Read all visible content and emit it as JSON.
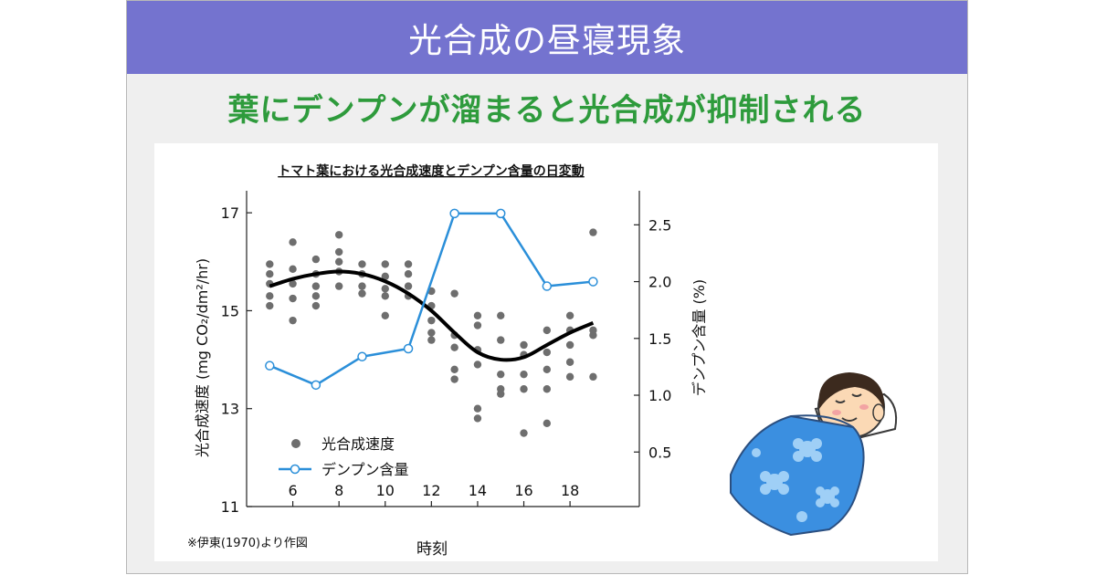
{
  "header": {
    "title": "光合成の昼寝現象"
  },
  "subtitle": "葉にデンプンが溜まると光合成が抑制される",
  "source_note": "※伊東(1970)より作図",
  "colors": {
    "banner": "#7473cf",
    "subtitle": "#2e9b3c",
    "starch_line": "#2b8fd9",
    "points": "#6e6e6e",
    "curve": "#000000"
  },
  "illustration": {
    "name": "sleeping-person-illustration"
  },
  "chart_data": {
    "type": "scatter",
    "title": "トマト葉における光合成速度とデンプン含量の日変動",
    "xlabel": "時刻",
    "ylabel_left": "光合成速度 (mg CO₂/dm²/hr)",
    "ylabel_right": "デンプン含量 (%)",
    "x_ticks": [
      6,
      8,
      10,
      12,
      14,
      16,
      18
    ],
    "xlim": [
      4,
      21
    ],
    "y_left_ticks": [
      11,
      13,
      15,
      17
    ],
    "y_left_lim": [
      11,
      17.45
    ],
    "y_right_ticks": [
      "0.5",
      "1.0",
      "1.5",
      "2.0",
      "2.5"
    ],
    "y_right_lim": [
      0.02,
      2.8
    ],
    "legend": {
      "placement": "bottom-left",
      "entries": [
        "光合成速度",
        "デンプン含量"
      ]
    },
    "series": [
      {
        "name": "光合成速度",
        "kind": "scatter",
        "axis": "left",
        "points": [
          [
            5,
            15.95
          ],
          [
            5,
            15.75
          ],
          [
            5,
            15.55
          ],
          [
            5,
            15.3
          ],
          [
            5,
            15.1
          ],
          [
            6,
            16.4
          ],
          [
            6,
            15.85
          ],
          [
            6,
            15.55
          ],
          [
            6,
            15.25
          ],
          [
            6,
            14.8
          ],
          [
            7,
            16.05
          ],
          [
            7,
            15.75
          ],
          [
            7,
            15.5
          ],
          [
            7,
            15.3
          ],
          [
            7,
            15.1
          ],
          [
            8,
            16.55
          ],
          [
            8,
            16.2
          ],
          [
            8,
            16.0
          ],
          [
            8,
            15.8
          ],
          [
            8,
            15.5
          ],
          [
            9,
            15.95
          ],
          [
            9,
            15.75
          ],
          [
            9,
            15.5
          ],
          [
            9,
            15.35
          ],
          [
            10,
            15.95
          ],
          [
            10,
            15.7
          ],
          [
            10,
            15.45
          ],
          [
            10,
            15.3
          ],
          [
            10,
            14.9
          ],
          [
            11,
            15.95
          ],
          [
            11,
            15.75
          ],
          [
            11,
            15.5
          ],
          [
            11,
            15.3
          ],
          [
            12,
            15.4
          ],
          [
            12,
            15.1
          ],
          [
            12,
            14.8
          ],
          [
            12,
            14.55
          ],
          [
            12,
            14.4
          ],
          [
            13,
            15.35
          ],
          [
            13,
            14.5
          ],
          [
            13,
            14.25
          ],
          [
            13,
            13.8
          ],
          [
            13,
            13.6
          ],
          [
            14,
            14.9
          ],
          [
            14,
            14.7
          ],
          [
            14,
            14.2
          ],
          [
            14,
            13.9
          ],
          [
            14,
            13.0
          ],
          [
            14,
            12.8
          ],
          [
            15,
            14.9
          ],
          [
            15,
            14.4
          ],
          [
            15,
            13.7
          ],
          [
            15,
            13.4
          ],
          [
            15,
            13.3
          ],
          [
            16,
            14.3
          ],
          [
            16,
            14.1
          ],
          [
            16,
            13.7
          ],
          [
            16,
            13.4
          ],
          [
            16,
            12.5
          ],
          [
            17,
            14.6
          ],
          [
            17,
            14.15
          ],
          [
            17,
            13.8
          ],
          [
            17,
            13.4
          ],
          [
            17,
            12.7
          ],
          [
            18,
            14.9
          ],
          [
            18,
            14.6
          ],
          [
            18,
            14.3
          ],
          [
            18,
            13.95
          ],
          [
            18,
            13.65
          ],
          [
            19,
            16.6
          ],
          [
            19,
            14.6
          ],
          [
            19,
            14.5
          ],
          [
            19,
            13.65
          ]
        ]
      },
      {
        "name": "光合成速度 trend",
        "kind": "curve",
        "axis": "left",
        "x": [
          5,
          6,
          7,
          8,
          9,
          10,
          11,
          12,
          13,
          14,
          15,
          16,
          17,
          18,
          19
        ],
        "y": [
          15.5,
          15.65,
          15.75,
          15.8,
          15.75,
          15.6,
          15.35,
          15.0,
          14.55,
          14.15,
          14.0,
          14.05,
          14.3,
          14.55,
          14.75
        ]
      },
      {
        "name": "デンプン含量",
        "kind": "line",
        "axis": "right",
        "x": [
          5,
          7,
          9,
          11,
          13,
          15,
          17,
          19
        ],
        "y": [
          1.26,
          1.09,
          1.34,
          1.41,
          2.6,
          2.6,
          1.96,
          2.0
        ]
      }
    ]
  }
}
